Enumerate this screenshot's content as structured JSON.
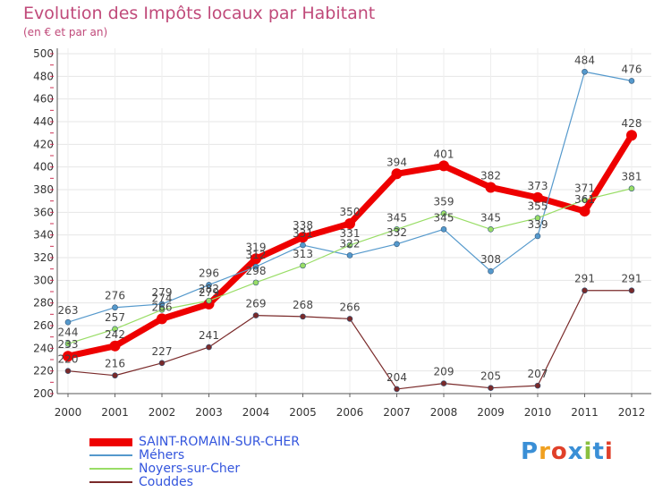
{
  "title": "Evolution des Impôts locaux par Habitant",
  "subtitle": "(en € et par an)",
  "logo": {
    "text": "Proxiti",
    "colors": [
      "#3a8fd6",
      "#f0a020",
      "#e0402a",
      "#3a8fd6",
      "#8ac040",
      "#3a8fd6",
      "#e0402a"
    ]
  },
  "chart_data": {
    "type": "line",
    "x": [
      2000,
      2001,
      2002,
      2003,
      2004,
      2005,
      2006,
      2007,
      2008,
      2009,
      2010,
      2011,
      2012
    ],
    "ylim": [
      200,
      500
    ],
    "yticks": [
      200,
      220,
      240,
      260,
      280,
      300,
      320,
      340,
      360,
      380,
      400,
      420,
      440,
      460,
      480,
      500
    ],
    "grid": true,
    "legend": "bottom-left",
    "series": [
      {
        "name": "SAINT-ROMAIN-SUR-CHER",
        "color": "#ee0000",
        "width": 7,
        "values": [
          233,
          242,
          266,
          279,
          319,
          338,
          350,
          394,
          401,
          382,
          373,
          361,
          428
        ]
      },
      {
        "name": "Méhers",
        "color": "#5599cc",
        "width": 1.2,
        "values": [
          263,
          276,
          279,
          296,
          312,
          331,
          322,
          332,
          345,
          308,
          339,
          484,
          476
        ]
      },
      {
        "name": "Noyers-sur-Cher",
        "color": "#99dd66",
        "width": 1.2,
        "values": [
          244,
          257,
          274,
          282,
          298,
          313,
          331,
          345,
          359,
          345,
          355,
          371,
          381
        ]
      },
      {
        "name": "Couddes",
        "color": "#7a2a2a",
        "width": 1.2,
        "values": [
          220,
          216,
          227,
          241,
          269,
          268,
          266,
          204,
          209,
          205,
          207,
          291,
          291
        ]
      }
    ]
  }
}
